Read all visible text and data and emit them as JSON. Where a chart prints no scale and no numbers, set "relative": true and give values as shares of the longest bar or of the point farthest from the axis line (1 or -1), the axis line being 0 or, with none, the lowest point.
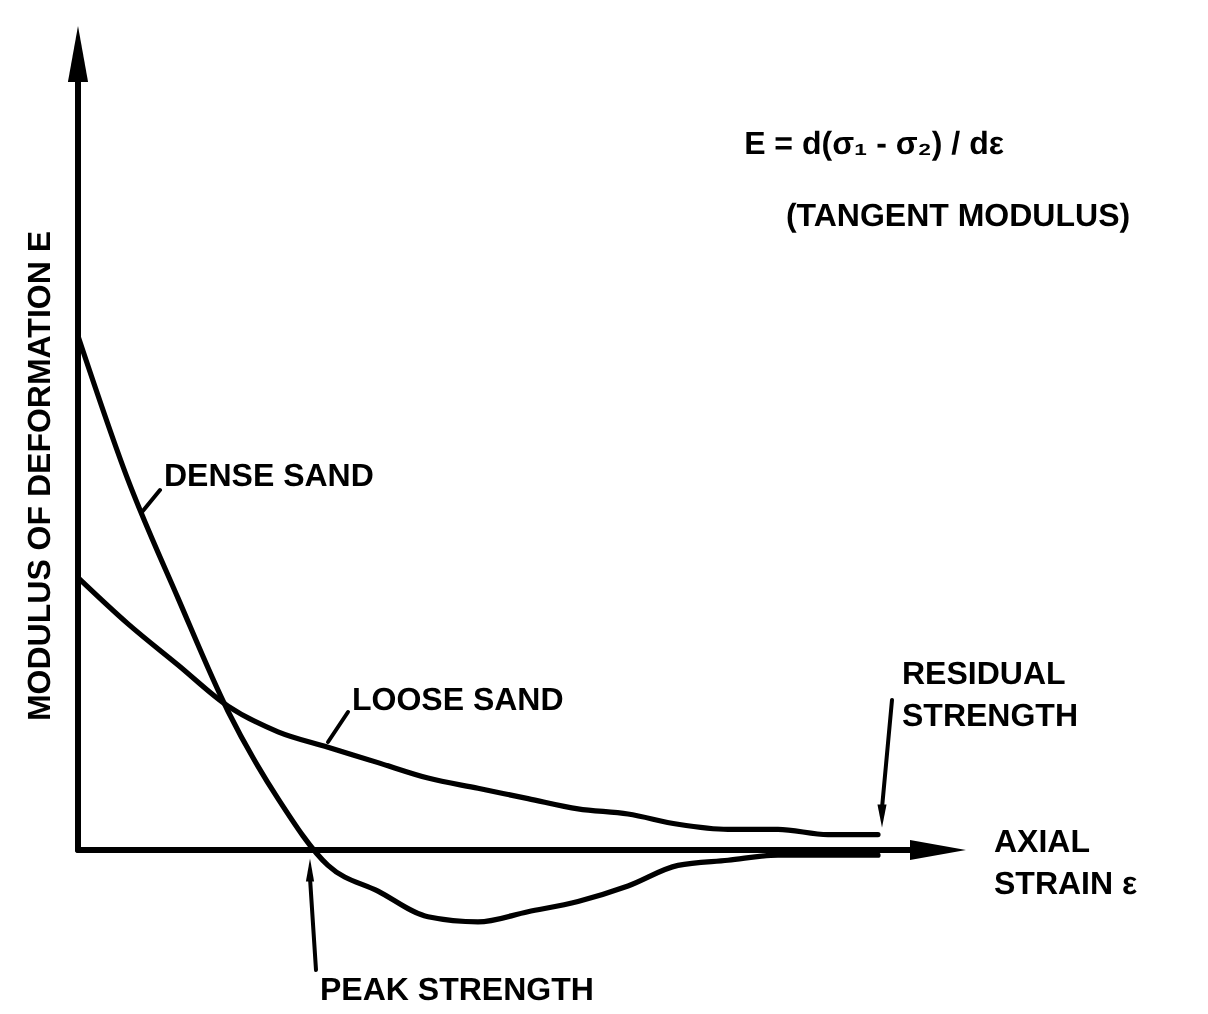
{
  "chart_data": {
    "type": "line",
    "relative": true,
    "xlabel": "AXIAL STRAIN ε",
    "ylabel": "MODULUS OF DEFORMATION E",
    "line_style": "solid",
    "categories": [
      null,
      null,
      null,
      null,
      null,
      null,
      null,
      null,
      null,
      null,
      null,
      null,
      null,
      null,
      null,
      null,
      null
    ],
    "series": [
      {
        "name": "DENSE SAND",
        "color": "#000000",
        "values": [
          1.0,
          0.72,
          0.49,
          0.27,
          0.1,
          -0.03,
          -0.08,
          -0.13,
          -0.14,
          -0.12,
          -0.1,
          -0.07,
          -0.03,
          -0.02,
          -0.01,
          -0.01,
          -0.01
        ]
      },
      {
        "name": "LOOSE SAND",
        "color": "#000000",
        "values": [
          0.53,
          0.44,
          0.36,
          0.28,
          0.23,
          0.2,
          0.17,
          0.14,
          0.12,
          0.1,
          0.08,
          0.07,
          0.05,
          0.04,
          0.04,
          0.03,
          0.03
        ]
      }
    ],
    "annotations": [
      "E = d(σ₁ - σ₂) / dε",
      "(TANGENT MODULUS)",
      "RESIDUAL STRENGTH",
      "PEAK STRENGTH"
    ]
  }
}
